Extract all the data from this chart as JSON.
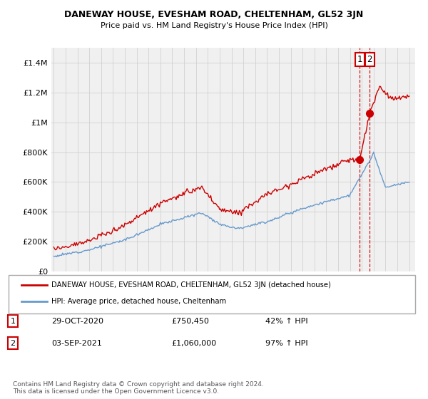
{
  "title": "DANEWAY HOUSE, EVESHAM ROAD, CHELTENHAM, GL52 3JN",
  "subtitle": "Price paid vs. HM Land Registry's House Price Index (HPI)",
  "legend_line1": "DANEWAY HOUSE, EVESHAM ROAD, CHELTENHAM, GL52 3JN (detached house)",
  "legend_line2": "HPI: Average price, detached house, Cheltenham",
  "annotation1": {
    "label": "1",
    "date": "29-OCT-2020",
    "price": "£750,450",
    "change": "42% ↑ HPI"
  },
  "annotation2": {
    "label": "2",
    "date": "03-SEP-2021",
    "price": "£1,060,000",
    "change": "97% ↑ HPI"
  },
  "footer": "Contains HM Land Registry data © Crown copyright and database right 2024.\nThis data is licensed under the Open Government Licence v3.0.",
  "red_color": "#cc0000",
  "blue_color": "#6699cc",
  "grid_color": "#cccccc",
  "background_color": "#ffffff",
  "ylim": [
    0,
    1500000
  ],
  "yticks": [
    0,
    200000,
    400000,
    600000,
    800000,
    1000000,
    1200000,
    1400000
  ],
  "ytick_labels": [
    "£0",
    "£200K",
    "£400K",
    "£600K",
    "£800K",
    "£1M",
    "£1.2M",
    "£1.4M"
  ],
  "x_start_year": 1995,
  "x_end_year": 2025,
  "sale1_year": 2020.83,
  "sale1_price": 750450,
  "sale2_year": 2021.67,
  "sale2_price": 1060000
}
